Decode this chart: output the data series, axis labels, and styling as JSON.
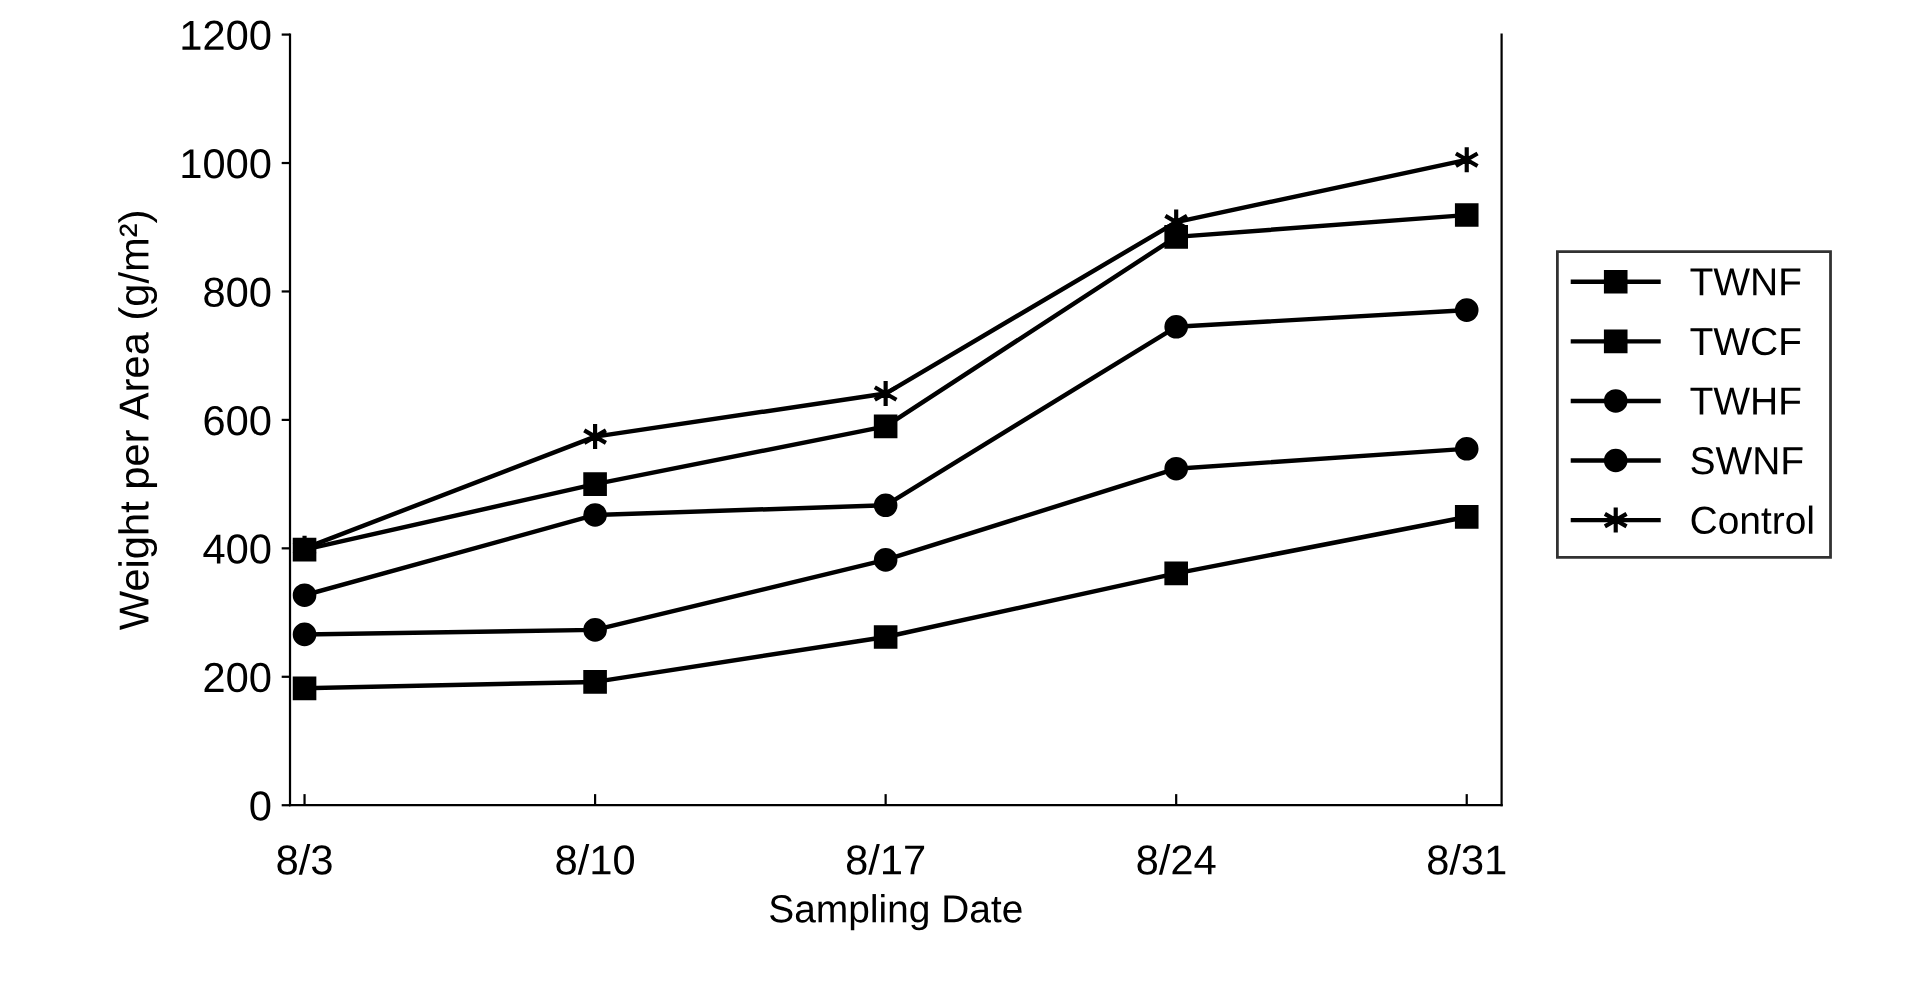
{
  "chart_data": {
    "type": "line",
    "xlabel": "Sampling Date",
    "ylabel": "Weight per Area (g/m²)",
    "categories": [
      "8/3",
      "8/10",
      "8/17",
      "8/24",
      "8/31"
    ],
    "series": [
      {
        "name": "TWNF",
        "color": "#000000",
        "marker": "square",
        "values": [
          182,
          192,
          262,
          361,
          449
        ]
      },
      {
        "name": "TWCF",
        "color": "#000000",
        "marker": "square",
        "values": [
          398,
          500,
          590,
          885,
          919
        ]
      },
      {
        "name": "TWHF",
        "color": "#000000",
        "marker": "circle",
        "values": [
          327,
          452,
          467,
          745,
          771
        ]
      },
      {
        "name": "SWNF",
        "color": "#000000",
        "marker": "circle",
        "values": [
          266,
          273,
          382,
          524,
          555
        ]
      },
      {
        "name": "Control",
        "color": "#000000",
        "marker": "cross",
        "values": [
          400,
          574,
          641,
          908,
          1005
        ]
      }
    ],
    "ylim": [
      0,
      1200
    ],
    "yticks": [
      0,
      200,
      400,
      600,
      800,
      1000,
      1200
    ],
    "grid": false,
    "legend": "right",
    "line_style": "solid"
  }
}
